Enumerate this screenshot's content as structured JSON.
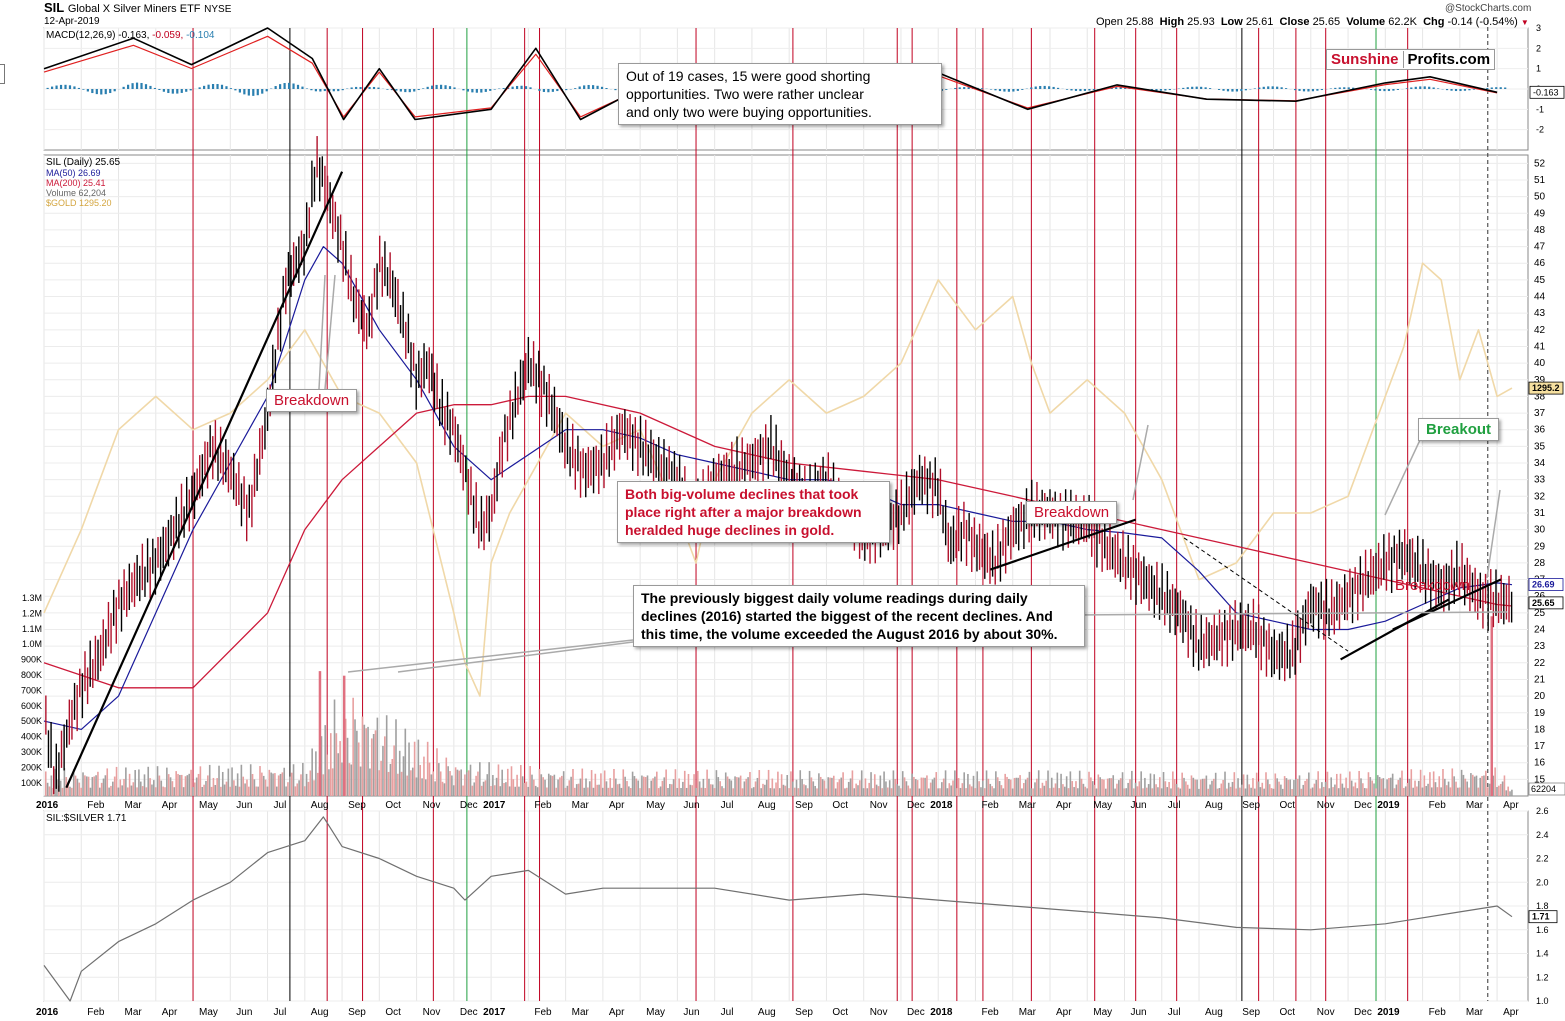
{
  "header": {
    "symbol": "SIL",
    "name": "Global X Silver Miners ETF",
    "exchange": "NYSE",
    "date": "12-Apr-2019",
    "watermark": "@StockCharts.com",
    "open_label": "Open",
    "open": "25.88",
    "high_label": "High",
    "high": "25.93",
    "low_label": "Low",
    "low": "25.61",
    "close_label": "Close",
    "close": "25.65",
    "volume_label": "Volume",
    "volume": "62.2K",
    "chg_label": "Chg",
    "chg": "-0.14 (-0.54%)"
  },
  "logo": {
    "part1": "Sunshine",
    "part2": "Profits.com",
    "color1": "#c8102e"
  },
  "annotations": {
    "macd_note": "Out of 19 cases, 15 were good shorting\nopportunities. Two were rather unclear\nand only two were buying opportunities.",
    "gold_note": "Both big-volume declines that took\nplace right after a major breakdown\nheralded huge declines in gold.",
    "volume_note": "The previously biggest daily volume readings  during daily\ndeclines (2016) started the biggest of the recent declines. And\nthis time, the volume exceeded the August 2016 by about 30%.",
    "breakdown": "Breakdown",
    "breakout": "Breakout"
  },
  "colors": {
    "red_line": "#c00020",
    "green_line": "#20a040",
    "ma50": "#1a1a9a",
    "ma200": "#cc1a3a",
    "gold": "#f0d8a8",
    "macd_hist": "#2a7fb0",
    "down_candle": "#b0102a",
    "volume_up": "#a0a0a0",
    "volume_down": "#e8a0a0",
    "ratio": "#707070"
  },
  "chart_data": [
    {
      "type": "line",
      "name": "MACD panel",
      "legend": "MACD(12,26,9) -0.163, -0.059, -0.104",
      "legend_parts": [
        "MACD(12,26,9)",
        "-0.163,",
        "-0.059,",
        "-0.104"
      ],
      "ylim": [
        -3,
        3
      ],
      "y_ticks": [
        "3",
        "2",
        "1",
        "0",
        "-1",
        "-2"
      ],
      "last_value_label": "-0.163",
      "series": [
        {
          "x": [
            2016.0,
            2016.2,
            2016.33,
            2016.5,
            2016.6,
            2016.67,
            2016.75,
            2016.83,
            2017.0,
            2017.1,
            2017.2,
            2017.4,
            2017.6,
            2017.8,
            2018.0,
            2018.2,
            2018.4,
            2018.6,
            2018.8,
            2019.0,
            2019.1,
            2019.25
          ],
          "values": [
            1.0,
            2.5,
            1.2,
            3.0,
            1.5,
            -1.5,
            1.0,
            -1.5,
            -1.0,
            2.0,
            -1.5,
            0.8,
            0.3,
            0.5,
            0.8,
            -1.0,
            0.2,
            -0.5,
            -0.6,
            0.3,
            0.6,
            -0.16
          ]
        }
      ]
    },
    {
      "type": "line",
      "name": "SIL price panel",
      "ylim": [
        14.0,
        52.5
      ],
      "y_ticks": [
        52,
        51,
        50,
        49,
        48,
        47,
        46,
        45,
        44,
        43,
        42,
        41,
        40,
        39,
        38,
        37,
        36,
        35,
        34,
        33,
        32,
        31,
        30,
        29,
        28,
        27,
        26,
        25,
        24,
        23,
        22,
        21,
        20,
        19,
        18,
        17,
        16,
        15
      ],
      "right_labels": [
        "1295.2",
        "26.69",
        "25.65",
        "62204"
      ],
      "volume_ticks": [
        "1.3M",
        "1.2M",
        "1.1M",
        "1.0M",
        "900K",
        "800K",
        "700K",
        "600K",
        "500K",
        "400K",
        "300K",
        "200K",
        "100K"
      ],
      "legend": [
        "SIL (Daily) 25.65",
        "MA(50) 26.69",
        "MA(200) 25.41",
        "Volume 62,204",
        "$GOLD 1295.20"
      ],
      "x_ticks": [
        "2016",
        "Feb",
        "Mar",
        "Apr",
        "May",
        "Jun",
        "Jul",
        "Aug",
        "Sep",
        "Oct",
        "Nov",
        "Dec",
        "2017",
        "Feb",
        "Mar",
        "Apr",
        "May",
        "Jun",
        "Jul",
        "Aug",
        "Sep",
        "Oct",
        "Nov",
        "Dec",
        "2018",
        "Feb",
        "Mar",
        "Apr",
        "May",
        "Jun",
        "Jul",
        "Aug",
        "Sep",
        "Oct",
        "Nov",
        "Dec",
        "2019",
        "Feb",
        "Mar",
        "Apr"
      ],
      "x_tick_pos": [
        0,
        1,
        2,
        3,
        4,
        5,
        6,
        7,
        8,
        9,
        10,
        11,
        12,
        13,
        14,
        15,
        16,
        17,
        18,
        19,
        20,
        21,
        22,
        23,
        24,
        25,
        26,
        27,
        28,
        29,
        30,
        31,
        32,
        33,
        34,
        35,
        36,
        37,
        38,
        39
      ],
      "series": [
        {
          "name": "SIL (Daily)",
          "x": [
            0,
            0.3,
            0.7,
            1,
            1.5,
            2,
            2.5,
            3,
            3.5,
            4,
            4.5,
            5,
            5.5,
            6,
            6.5,
            7,
            7.3,
            7.5,
            8,
            8.3,
            8.7,
            9,
            9.3,
            9.7,
            10,
            10.3,
            10.7,
            11,
            11.3,
            11.7,
            12,
            12.3,
            12.7,
            13,
            13.3,
            13.7,
            14,
            14.5,
            15,
            15.5,
            16,
            16.5,
            17,
            17.5,
            18,
            18.5,
            19,
            19.5,
            20,
            20.5,
            21,
            21.5,
            22,
            22.5,
            23,
            23.5,
            24,
            24.3,
            24.7,
            25,
            25.5,
            26,
            26.5,
            27,
            27.5,
            28,
            28.5,
            29,
            29.5,
            30,
            30.5,
            31,
            31.5,
            32,
            32.5,
            33,
            33.5,
            34,
            34.5,
            35,
            35.5,
            36,
            36.5,
            37,
            37.5,
            38,
            38.5,
            39,
            39.4
          ],
          "values": [
            19,
            15,
            18.5,
            20.5,
            22.5,
            25.5,
            27,
            28,
            30,
            32,
            35,
            33.5,
            31,
            37,
            45,
            47,
            52,
            51,
            47,
            44,
            42,
            46,
            45,
            42,
            39,
            40,
            37,
            36,
            33.5,
            30,
            31,
            35,
            38,
            40,
            39,
            37,
            35,
            33.5,
            34,
            36,
            35,
            34,
            33,
            31,
            33,
            33.5,
            34,
            35,
            33,
            32,
            33,
            31,
            29.5,
            30,
            31,
            33,
            32.5,
            29,
            30,
            29,
            28,
            30,
            31,
            31,
            30.5,
            30.5,
            29,
            28,
            27,
            26,
            25,
            23,
            23.5,
            24,
            24,
            22.5,
            22.5,
            25.5,
            25,
            26,
            27,
            28,
            28.5,
            27.5,
            26.5,
            27.5,
            26,
            25.7,
            25.65
          ]
        },
        {
          "name": "MA(50)",
          "x": [
            0,
            1,
            2,
            3,
            4,
            5,
            6,
            7,
            7.5,
            8,
            9,
            10,
            11,
            12,
            13,
            14,
            15,
            16,
            17,
            18,
            19,
            20,
            21,
            22,
            23,
            24,
            25,
            26,
            27,
            28,
            29,
            30,
            31,
            32,
            33,
            34,
            35,
            36,
            37,
            38,
            39,
            39.4
          ],
          "values": [
            18.5,
            18,
            20,
            25,
            30,
            34,
            38,
            45,
            47,
            46,
            42,
            39,
            35,
            33,
            34.5,
            36,
            36,
            35.5,
            34.5,
            34,
            33.5,
            33,
            33,
            32.5,
            31.5,
            31.5,
            31,
            30.5,
            30.5,
            30,
            29.8,
            29.5,
            27.5,
            25,
            24.5,
            24,
            24,
            24.5,
            25.5,
            26.5,
            26.8,
            26.69
          ]
        },
        {
          "name": "MA(200)",
          "x": [
            0,
            2,
            4,
            6,
            7,
            8,
            9,
            10,
            11,
            12,
            13,
            14,
            16,
            18,
            20,
            22,
            24,
            26,
            28,
            30,
            32,
            34,
            36,
            38,
            39,
            39.4
          ],
          "values": [
            22,
            20.5,
            20.5,
            25,
            30,
            33,
            35,
            37,
            37.5,
            37.5,
            38,
            38,
            37,
            35,
            34,
            33.5,
            33,
            32,
            31,
            30,
            29,
            28,
            27,
            26,
            25.5,
            25.41
          ]
        },
        {
          "name": "$GOLD",
          "x": [
            0,
            1,
            2,
            3,
            4,
            5,
            6,
            7,
            8,
            9,
            10,
            11,
            11.3,
            11.7,
            12,
            12.5,
            13,
            14,
            15,
            16,
            17,
            17.5,
            18,
            19,
            20,
            21,
            22,
            23,
            24,
            25,
            26,
            26.5,
            27,
            28,
            29,
            30,
            30.5,
            31,
            32,
            33,
            34,
            35,
            36,
            36.5,
            37,
            37.5,
            38,
            38.5,
            39,
            39.4
          ],
          "values": [
            25,
            30,
            36,
            38,
            36,
            37,
            39,
            42,
            38,
            37,
            34,
            25,
            22,
            20,
            28,
            31,
            33,
            37,
            35,
            36,
            31,
            28,
            33,
            37,
            39,
            37,
            38,
            40,
            45,
            42,
            44,
            40,
            37,
            39,
            37,
            33,
            30,
            27,
            28,
            31,
            31,
            32,
            38,
            41,
            46,
            45,
            39,
            42,
            38,
            38.5
          ]
        },
        {
          "name": "Volume (K)",
          "x": [
            0,
            7,
            8,
            11,
            14,
            21,
            27,
            33,
            36,
            39,
            39.4
          ],
          "values": [
            150,
            180,
            620,
            200,
            150,
            140,
            140,
            130,
            140,
            160,
            62
          ]
        }
      ],
      "trendlines": [
        "up-2016",
        "flag-2018",
        "wedge-2019"
      ]
    },
    {
      "type": "line",
      "name": "SIL:$SILVER ratio",
      "legend": "SIL:$SILVER 1.71",
      "ylim": [
        1.0,
        2.6
      ],
      "y_ticks": [
        "2.6",
        "2.4",
        "2.2",
        "2.0",
        "1.8",
        "1.6",
        "1.4",
        "1.2",
        "1.0"
      ],
      "last_value_label": "1.71",
      "series": [
        {
          "x": [
            0,
            0.7,
            1,
            2,
            3,
            4,
            5,
            6,
            7,
            7.5,
            8,
            9,
            10,
            11,
            11.3,
            12,
            13,
            14,
            15,
            16,
            18,
            20,
            22,
            24,
            26,
            28,
            30,
            32,
            34,
            36,
            38,
            39,
            39.4
          ],
          "values": [
            1.3,
            1.0,
            1.25,
            1.5,
            1.65,
            1.85,
            2.0,
            2.25,
            2.35,
            2.55,
            2.3,
            2.2,
            2.05,
            1.95,
            1.85,
            2.05,
            2.1,
            1.9,
            1.95,
            1.95,
            1.95,
            1.85,
            1.9,
            1.85,
            1.8,
            1.75,
            1.7,
            1.62,
            1.6,
            1.65,
            1.75,
            1.8,
            1.71
          ]
        }
      ]
    }
  ]
}
